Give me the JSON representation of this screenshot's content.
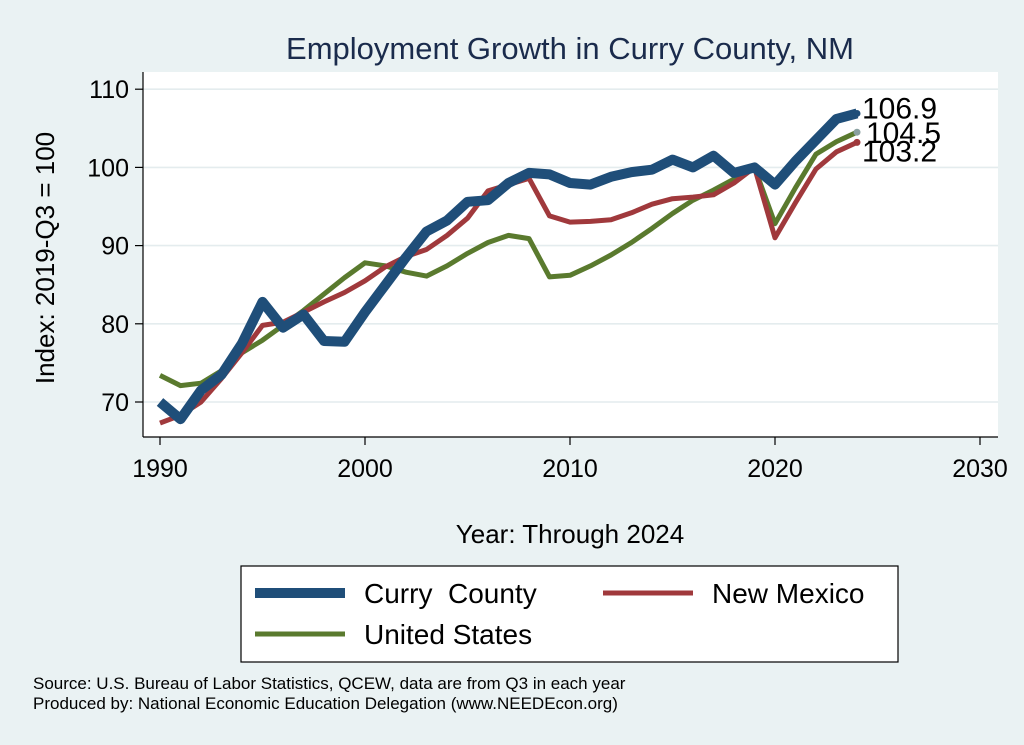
{
  "chart_data": {
    "type": "line",
    "title": "Employment Growth in Curry County, NM",
    "xlabel": "Year: Through 2024",
    "ylabel": "Index: 2019-Q3 = 100",
    "xlim": [
      1990,
      2030
    ],
    "ylim": [
      65,
      112
    ],
    "xticks": [
      1990,
      2000,
      2010,
      2020,
      2030
    ],
    "yticks": [
      70,
      80,
      90,
      100,
      110
    ],
    "grid": true,
    "legend_position": "bottom",
    "x": [
      1990,
      1991,
      1992,
      1993,
      1994,
      1995,
      1996,
      1997,
      1998,
      1999,
      2000,
      2001,
      2002,
      2003,
      2004,
      2005,
      2006,
      2007,
      2008,
      2009,
      2010,
      2011,
      2012,
      2013,
      2014,
      2015,
      2016,
      2017,
      2018,
      2019,
      2020,
      2021,
      2022,
      2023,
      2024
    ],
    "series": [
      {
        "name": "Curry  County",
        "color": "#1f4e79",
        "values": [
          70.0,
          67.8,
          71.5,
          73.5,
          77.5,
          82.8,
          79.5,
          81.2,
          77.8,
          77.7,
          81.5,
          85.0,
          88.5,
          91.8,
          93.2,
          95.6,
          95.8,
          98.0,
          99.3,
          99.1,
          98.0,
          97.8,
          98.8,
          99.4,
          99.7,
          101.0,
          100.0,
          101.5,
          99.3,
          100.0,
          97.8,
          100.8,
          103.5,
          106.2,
          106.9
        ],
        "end_label": "106.9"
      },
      {
        "name": "New Mexico",
        "color": "#a0393c",
        "values": [
          67.3,
          68.3,
          70.0,
          73.0,
          76.3,
          79.8,
          80.2,
          81.5,
          82.8,
          84.0,
          85.5,
          87.3,
          88.6,
          89.5,
          91.3,
          93.5,
          97.0,
          97.8,
          98.6,
          93.8,
          93.0,
          93.1,
          93.3,
          94.2,
          95.3,
          96.0,
          96.2,
          96.5,
          98.0,
          100.0,
          91.0,
          95.5,
          99.8,
          102.0,
          103.2
        ],
        "end_label": "103.2"
      },
      {
        "name": "United States",
        "color": "#5a7a2e",
        "values": [
          73.4,
          72.1,
          72.4,
          74.0,
          76.3,
          77.9,
          79.8,
          81.7,
          83.8,
          85.9,
          87.8,
          87.4,
          86.6,
          86.1,
          87.4,
          89.0,
          90.4,
          91.3,
          90.9,
          86.0,
          86.2,
          87.4,
          88.8,
          90.4,
          92.2,
          94.1,
          95.8,
          97.1,
          98.5,
          100.0,
          92.8,
          97.4,
          101.7,
          103.3,
          104.5
        ],
        "end_label": "104.5"
      }
    ]
  },
  "source_line1": "Source: U.S. Bureau of Labor Statistics, QCEW, data are from Q3 in each year",
  "source_line2": "Produced by: National Economic Education Delegation (www.NEEDEcon.org)"
}
